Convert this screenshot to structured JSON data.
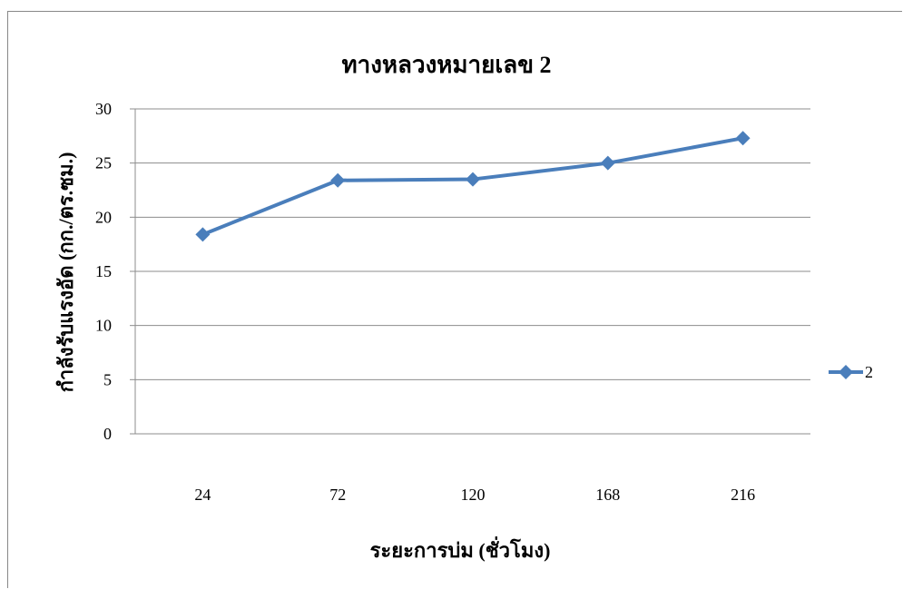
{
  "chart_data": {
    "type": "line",
    "title": "ทางหลวงหมายเลข 2",
    "xlabel": "ระยะการบ่ม (ชั่วโมง)",
    "ylabel": "กำลังรับแรงอัด (กก./ตร.ซม.)",
    "categories": [
      "24",
      "72",
      "120",
      "168",
      "216"
    ],
    "series": [
      {
        "name": "2",
        "values": [
          18.4,
          23.4,
          23.5,
          25.0,
          27.3
        ],
        "color": "#4a7ebb",
        "marker": "diamond"
      }
    ],
    "ylim": [
      0,
      30
    ],
    "yticks": [
      0,
      5,
      10,
      15,
      20,
      25,
      30
    ],
    "grid": true,
    "legend": "right"
  }
}
